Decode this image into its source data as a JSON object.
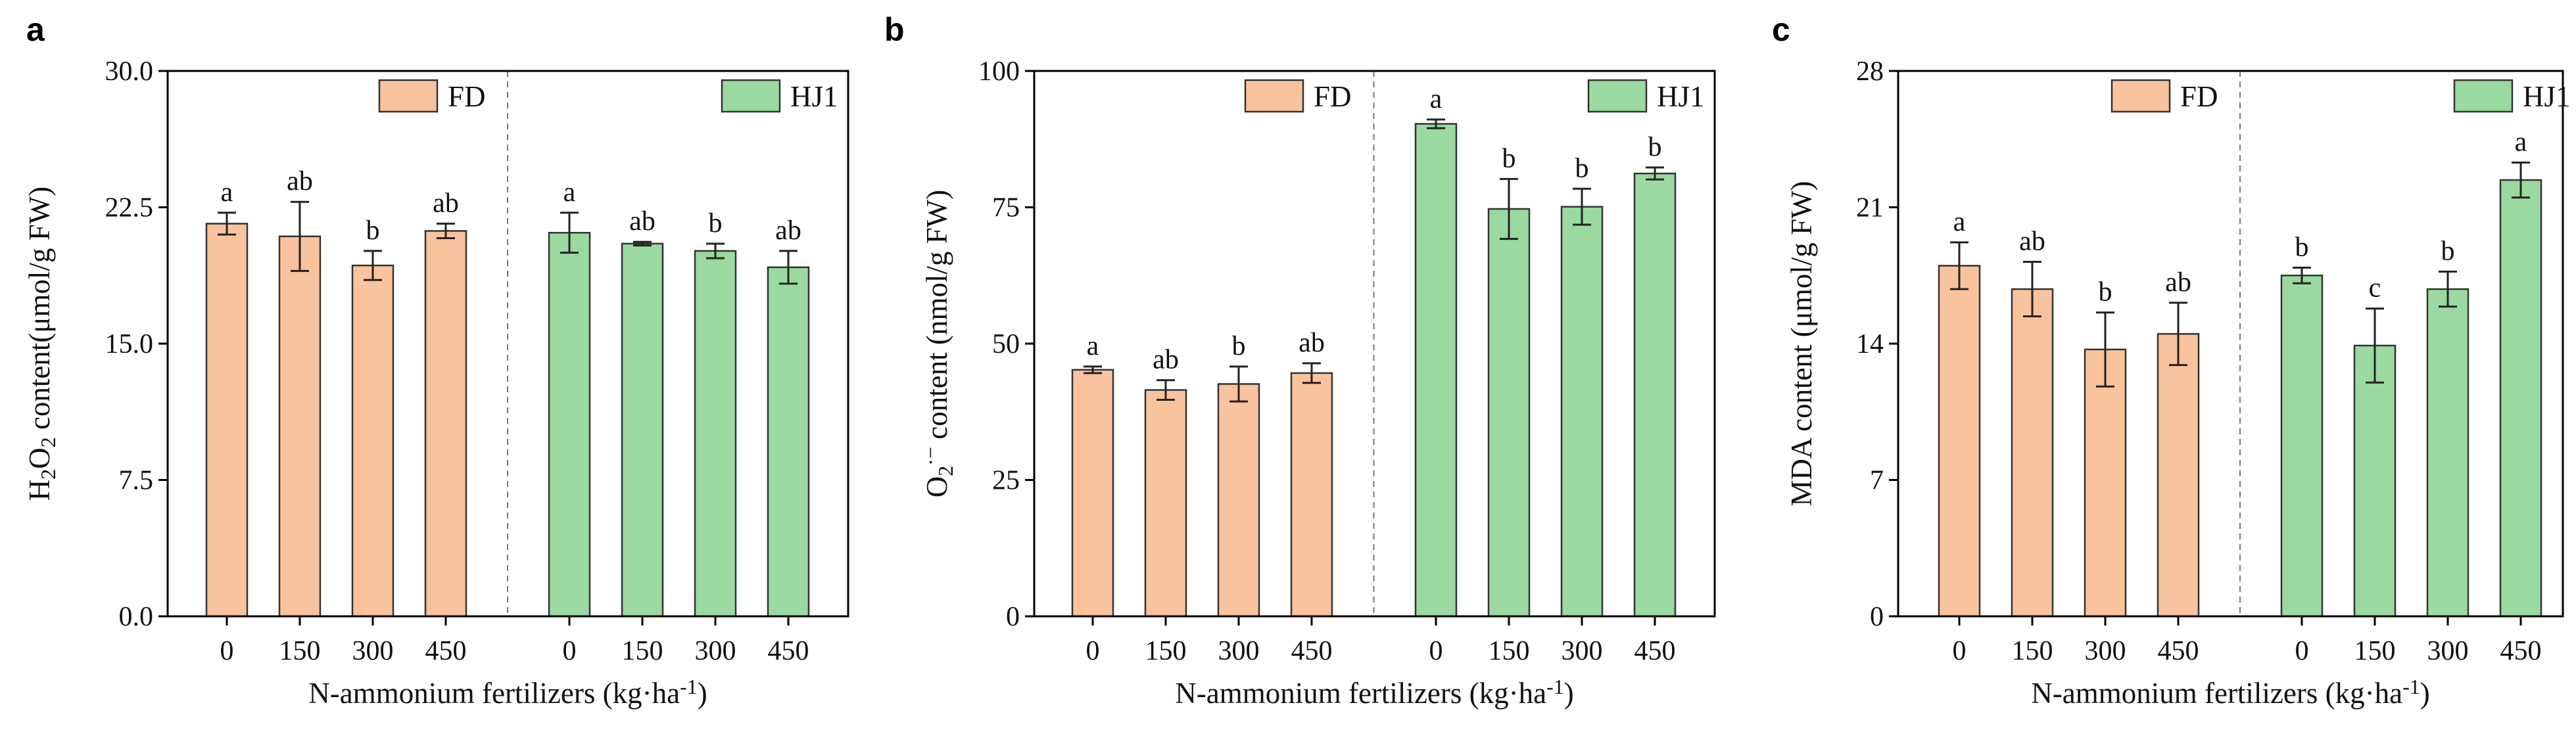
{
  "figure": {
    "xlabel_main": "N-ammonium fertilizers (kg·ha",
    "xlabel_sup": "-1",
    "xlabel_end": ")"
  },
  "colors": {
    "FD": "#f8c39d",
    "HJ1": "#9ad9a0",
    "edge": "#333333"
  },
  "chart_data": [
    {
      "type": "bar",
      "panel": "a",
      "ylabel_parts": [
        "H",
        "2",
        "O",
        "2",
        " content(μmol/g FW)"
      ],
      "ylim": [
        0,
        30
      ],
      "yticks": [
        0,
        7.5,
        15,
        22.5,
        30
      ],
      "ytick_labels": [
        "0.0",
        "7.5",
        "15.0",
        "22.5",
        "30.0"
      ],
      "categories": [
        "0",
        "150",
        "300",
        "450"
      ],
      "series": [
        {
          "name": "FD",
          "values": [
            21.6,
            20.9,
            19.3,
            21.2
          ],
          "errors": [
            0.6,
            1.9,
            0.8,
            0.4
          ],
          "letters": [
            "a",
            "ab",
            "b",
            "ab"
          ]
        },
        {
          "name": "HJ1",
          "values": [
            21.1,
            20.5,
            20.1,
            19.2
          ],
          "errors": [
            1.1,
            0.1,
            0.4,
            0.9
          ],
          "letters": [
            "a",
            "ab",
            "b",
            "ab"
          ]
        }
      ]
    },
    {
      "type": "bar",
      "panel": "b",
      "ylabel_parts": [
        "O",
        "2",
        "·−",
        " content (nmol/g FW)"
      ],
      "ylim": [
        0,
        100
      ],
      "yticks": [
        0,
        25,
        50,
        75,
        100
      ],
      "ytick_labels": [
        "0",
        "25",
        "50",
        "75",
        "100"
      ],
      "categories": [
        "0",
        "150",
        "300",
        "450"
      ],
      "series": [
        {
          "name": "FD",
          "values": [
            45.2,
            41.5,
            42.6,
            44.6
          ],
          "errors": [
            0.6,
            1.8,
            3.2,
            1.8
          ],
          "letters": [
            "a",
            "ab",
            "b",
            "ab"
          ]
        },
        {
          "name": "HJ1",
          "values": [
            90.3,
            74.7,
            75.1,
            81.2
          ],
          "errors": [
            0.8,
            5.5,
            3.3,
            1.1
          ],
          "letters": [
            "a",
            "b",
            "b",
            "b"
          ]
        }
      ]
    },
    {
      "type": "bar",
      "panel": "c",
      "ylabel_parts": [
        "MDA content (μmol/g FW)"
      ],
      "ylim": [
        0,
        28
      ],
      "yticks": [
        0,
        7,
        14,
        21,
        28
      ],
      "ytick_labels": [
        "0",
        "7",
        "14",
        "21",
        "28"
      ],
      "categories": [
        "0",
        "150",
        "300",
        "450"
      ],
      "series": [
        {
          "name": "FD",
          "values": [
            18.0,
            16.8,
            13.7,
            14.5
          ],
          "errors": [
            1.2,
            1.4,
            1.9,
            1.6
          ],
          "letters": [
            "a",
            "ab",
            "b",
            "ab"
          ]
        },
        {
          "name": "HJ1",
          "values": [
            17.5,
            13.9,
            16.8,
            22.4
          ],
          "errors": [
            0.4,
            1.9,
            0.9,
            0.9
          ],
          "letters": [
            "b",
            "c",
            "b",
            "a"
          ]
        }
      ]
    }
  ]
}
